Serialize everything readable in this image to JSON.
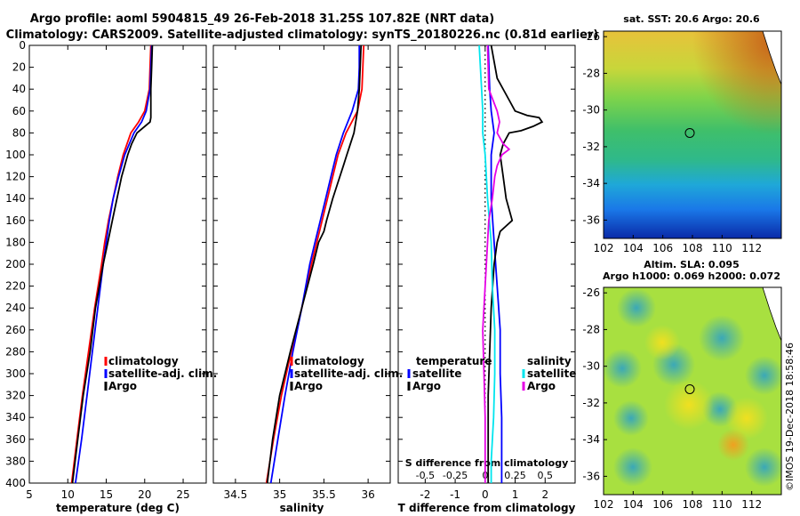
{
  "title_line1": "Argo profile: aoml 5904815_49 26-Feb-2018 31.25S 107.82E (NRT data)",
  "title_line2": "Climatology: CARS2009. Satellite-adjusted climatology: synTS_20180226.nc (0.81d earlier)",
  "watermark": "©IMOS 19-Dec-2018 18:58:46",
  "colors": {
    "climatology": "#ff0000",
    "satellite_adj": "#0000ff",
    "argo": "#000000",
    "sat_s": "#00e5ee",
    "argo_s": "#e600e6"
  },
  "depth_axis": {
    "ticks": [
      0,
      20,
      40,
      60,
      80,
      100,
      120,
      140,
      160,
      180,
      200,
      220,
      240,
      260,
      280,
      300,
      320,
      340,
      360,
      380,
      400
    ],
    "range": [
      0,
      400
    ]
  },
  "chart_data": [
    {
      "type": "line",
      "id": "temperature",
      "xlabel": "temperature (deg C)",
      "xlim": [
        5,
        28
      ],
      "xticks": [
        5,
        10,
        15,
        20,
        25
      ],
      "legend": [
        "climatology",
        "satellite-adj. clim.",
        "Argo"
      ],
      "series": [
        {
          "name": "climatology",
          "depth": [
            0,
            20,
            40,
            60,
            70,
            80,
            100,
            120,
            140,
            160,
            180,
            200,
            240,
            280,
            320,
            360,
            400
          ],
          "values": [
            20.8,
            20.7,
            20.6,
            20.0,
            19.2,
            18.2,
            17.2,
            16.5,
            15.9,
            15.3,
            14.8,
            14.4,
            13.5,
            12.7,
            11.9,
            11.2,
            10.5
          ]
        },
        {
          "name": "satellite-adj. clim.",
          "depth": [
            0,
            20,
            40,
            60,
            70,
            80,
            100,
            120,
            140,
            160,
            180,
            200,
            240,
            280,
            320,
            360,
            400
          ],
          "values": [
            20.9,
            20.8,
            20.7,
            20.2,
            19.6,
            18.6,
            17.4,
            16.6,
            15.9,
            15.4,
            15.0,
            14.6,
            13.9,
            13.2,
            12.5,
            11.8,
            11.0
          ]
        },
        {
          "name": "Argo",
          "depth": [
            0,
            20,
            40,
            60,
            64,
            66,
            70,
            80,
            90,
            100,
            110,
            120,
            140,
            160,
            180,
            200,
            240,
            280,
            320,
            360,
            400
          ],
          "values": [
            21.0,
            20.9,
            20.8,
            20.8,
            20.8,
            20.8,
            20.7,
            19.0,
            18.3,
            17.8,
            17.4,
            17.0,
            16.4,
            15.8,
            15.2,
            14.6,
            13.6,
            12.9,
            12.0,
            11.3,
            10.6
          ]
        }
      ]
    },
    {
      "type": "line",
      "id": "salinity",
      "xlabel": "salinity",
      "xlim": [
        34.25,
        36.25
      ],
      "xticks": [
        34.5,
        35,
        35.5,
        36
      ],
      "legend": [
        "climatology",
        "satellite-adj. clim.",
        "Argo"
      ],
      "series": [
        {
          "name": "climatology",
          "depth": [
            0,
            20,
            40,
            60,
            80,
            100,
            120,
            140,
            160,
            180,
            200,
            240,
            280,
            320,
            360,
            400
          ],
          "values": [
            35.95,
            35.94,
            35.93,
            35.88,
            35.75,
            35.66,
            35.6,
            35.54,
            35.48,
            35.42,
            35.36,
            35.25,
            35.13,
            35.02,
            34.93,
            34.85
          ]
        },
        {
          "name": "satellite-adj. clim.",
          "depth": [
            0,
            20,
            40,
            60,
            80,
            100,
            120,
            140,
            160,
            180,
            200,
            240,
            280,
            320,
            360,
            400
          ],
          "values": [
            35.9,
            35.9,
            35.89,
            35.82,
            35.72,
            35.64,
            35.58,
            35.52,
            35.46,
            35.4,
            35.34,
            35.25,
            35.15,
            35.06,
            34.98,
            34.9
          ]
        },
        {
          "name": "Argo",
          "depth": [
            0,
            20,
            40,
            60,
            70,
            80,
            90,
            100,
            110,
            120,
            140,
            160,
            170,
            180,
            200,
            240,
            280,
            320,
            360,
            400
          ],
          "values": [
            35.92,
            35.91,
            35.9,
            35.88,
            35.86,
            35.84,
            35.8,
            35.76,
            35.72,
            35.68,
            35.6,
            35.53,
            35.5,
            35.44,
            35.38,
            35.25,
            35.12,
            35.0,
            34.92,
            34.86
          ]
        }
      ]
    },
    {
      "type": "line",
      "id": "differences",
      "xlabel": "T difference from climatology",
      "xlabel_s": "S difference from climatology",
      "xlim": [
        -2.9,
        3.0
      ],
      "xticks": [
        -2,
        -1,
        0,
        1,
        2
      ],
      "s_xlim": [
        -0.725,
        0.75
      ],
      "s_xticks": [
        -0.5,
        -0.25,
        0,
        0.25,
        0.5
      ],
      "legend_left_title": "temperature",
      "legend_right_title": "salinity",
      "legend": [
        "satellite",
        "Argo"
      ],
      "series": [
        {
          "name": "T satellite",
          "axis": "T",
          "depth": [
            0,
            40,
            60,
            80,
            100,
            140,
            180,
            220,
            260,
            300,
            340,
            380,
            400
          ],
          "values": [
            0.1,
            0.15,
            0.2,
            0.3,
            0.2,
            0.2,
            0.3,
            0.4,
            0.5,
            0.5,
            0.55,
            0.55,
            0.55
          ]
        },
        {
          "name": "T Argo",
          "axis": "T",
          "depth": [
            0,
            30,
            50,
            60,
            64,
            66,
            70,
            74,
            78,
            80,
            90,
            100,
            120,
            140,
            160,
            170,
            180,
            200,
            240,
            280,
            320,
            360,
            400
          ],
          "values": [
            0.2,
            0.4,
            0.8,
            1.0,
            1.4,
            1.8,
            1.9,
            1.6,
            1.2,
            0.8,
            0.6,
            0.5,
            0.6,
            0.7,
            0.9,
            0.5,
            0.4,
            0.3,
            0.2,
            0.15,
            0.1,
            0.1,
            0.1
          ]
        },
        {
          "name": "S satellite",
          "axis": "S",
          "depth": [
            0,
            40,
            60,
            80,
            100,
            140,
            180,
            220,
            260,
            300,
            340,
            380,
            400
          ],
          "values": [
            -0.05,
            -0.03,
            -0.02,
            -0.02,
            0.0,
            0.02,
            0.05,
            0.06,
            0.08,
            0.08,
            0.07,
            0.05,
            0.05
          ]
        },
        {
          "name": "S Argo",
          "axis": "S",
          "depth": [
            0,
            40,
            60,
            70,
            80,
            90,
            95,
            100,
            110,
            120,
            140,
            160,
            180,
            220,
            260,
            300,
            340,
            380,
            400
          ],
          "values": [
            0.02,
            0.03,
            0.1,
            0.12,
            0.1,
            0.15,
            0.2,
            0.14,
            0.1,
            0.08,
            0.06,
            0.03,
            0.02,
            0.0,
            -0.02,
            -0.01,
            0.0,
            0.0,
            0.0
          ]
        }
      ]
    }
  ],
  "maps": {
    "xticks": [
      102,
      104,
      106,
      108,
      110,
      112
    ],
    "yticks": [
      -26,
      -28,
      -30,
      -32,
      -34,
      -36
    ],
    "lon_range": [
      102,
      114
    ],
    "lat_range": [
      -37,
      -25.7
    ],
    "profile_lon": 107.82,
    "profile_lat": -31.25,
    "sst": {
      "title": "sat. SST: 20.6 Argo: 20.6"
    },
    "sla": {
      "title1": "Altim. SLA: 0.095",
      "title2": "Argo h1000: 0.069 h2000: 0.072"
    }
  }
}
